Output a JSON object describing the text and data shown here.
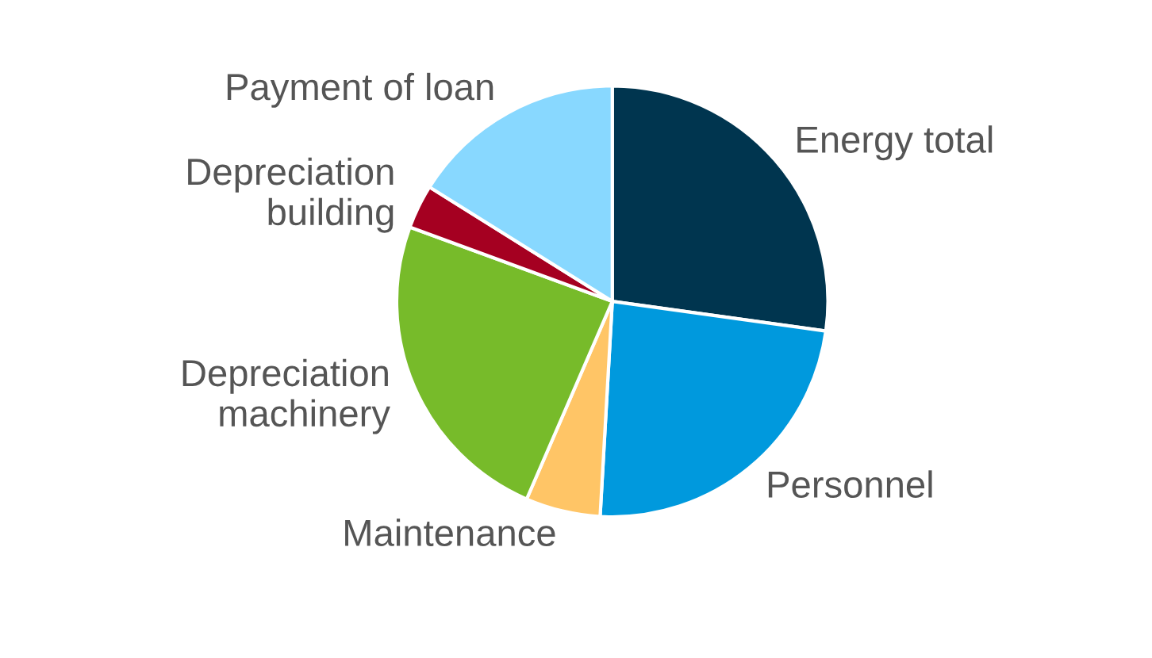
{
  "chart_data": {
    "type": "pie",
    "categories": [
      "Energy total",
      "Personnel",
      "Maintenance",
      "Depreciation\nmachinery",
      "Depreciation\nbuilding",
      "Payment of loan"
    ],
    "values": [
      27.2,
      23.7,
      5.6,
      24.1,
      3.3,
      16.1
    ],
    "colors": [
      "#00354f",
      "#0099dd",
      "#ffc566",
      "#77bb2a",
      "#a50021",
      "#88d8ff"
    ]
  }
}
